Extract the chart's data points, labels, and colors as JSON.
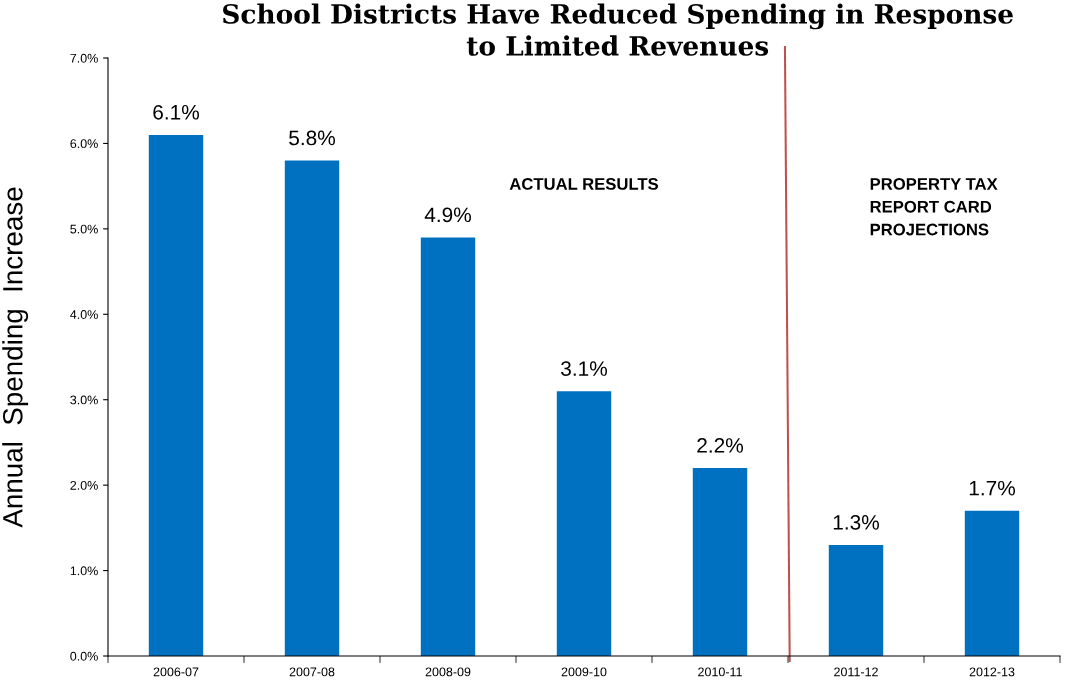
{
  "chart_data": {
    "type": "bar",
    "title": "School Districts Have Reduced Spending in Response\nto Limited Revenues",
    "ylabel": "Annual  Spending  Increase",
    "categories": [
      "2006-07",
      "2007-08",
      "2008-09",
      "2009-10",
      "2010-11",
      "2011-12",
      "2012-13"
    ],
    "values": [
      6.1,
      5.8,
      4.9,
      3.1,
      2.2,
      1.3,
      1.7
    ],
    "value_labels": [
      "6.1%",
      "5.8%",
      "4.9%",
      "3.1%",
      "2.2%",
      "1.3%",
      "1.7%"
    ],
    "color": "#0070c0",
    "ylim": [
      0,
      7
    ],
    "yticks": [
      {
        "value": 0,
        "label": "0.0%"
      },
      {
        "value": 1,
        "label": "1.0%"
      },
      {
        "value": 2,
        "label": "2.0%"
      },
      {
        "value": 3,
        "label": "3.0%"
      },
      {
        "value": 4,
        "label": "4.0%"
      },
      {
        "value": 5,
        "label": "5.0%"
      },
      {
        "value": 6,
        "label": "6.0%"
      },
      {
        "value": 7,
        "label": "7.0%"
      }
    ],
    "annotations": [
      "ACTUAL RESULTS",
      "PROPERTY TAX\nREPORT CARD\nPROJECTIONS"
    ],
    "grid": false,
    "legend": false
  }
}
